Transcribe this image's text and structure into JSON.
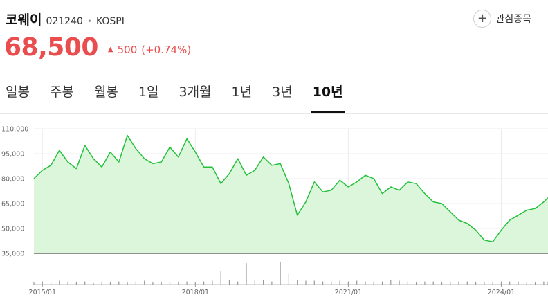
{
  "stock": {
    "name": "코웨이",
    "code": "021240",
    "separator": "•",
    "market": "KOSPI"
  },
  "watch": {
    "icon": "plus-icon",
    "icon_glyph": "+",
    "label": "관심종목"
  },
  "quote": {
    "price": "68,500",
    "change_arrow": "▲",
    "change": "500",
    "change_percent": "(+0.74%)"
  },
  "colors": {
    "up": "#e94d4d",
    "line": "#22c03a",
    "area": "#dcf6dc"
  },
  "tabs": [
    {
      "label": "일봉",
      "active": false
    },
    {
      "label": "주봉",
      "active": false
    },
    {
      "label": "월봉",
      "active": false
    },
    {
      "label": "1일",
      "active": false
    },
    {
      "label": "3개월",
      "active": false
    },
    {
      "label": "1년",
      "active": false
    },
    {
      "label": "3년",
      "active": false
    },
    {
      "label": "10년",
      "active": true
    }
  ],
  "chart_data": {
    "type": "area",
    "y_ticks": [
      "110,000",
      "95,000",
      "80,000",
      "65,000",
      "50,000",
      "35,000"
    ],
    "ylim": [
      35000,
      110000
    ],
    "x_ticks": [
      "2015/01",
      "2018/01",
      "2021/01",
      "2024/01"
    ],
    "xlim": [
      "2014/11",
      "2024/12"
    ],
    "grid": true,
    "series": [
      {
        "x": [
          "2014/11",
          "2015/01",
          "2015/03",
          "2015/05",
          "2015/07",
          "2015/09",
          "2015/11",
          "2016/01",
          "2016/03",
          "2016/05",
          "2016/07",
          "2016/09",
          "2016/11",
          "2017/01",
          "2017/03",
          "2017/05",
          "2017/07",
          "2017/09",
          "2017/11",
          "2018/01",
          "2018/03",
          "2018/05",
          "2018/07",
          "2018/09",
          "2018/11",
          "2019/01",
          "2019/03",
          "2019/05",
          "2019/07",
          "2019/09",
          "2019/11",
          "2020/01",
          "2020/03",
          "2020/05",
          "2020/07",
          "2020/09",
          "2020/11",
          "2021/01",
          "2021/03",
          "2021/05",
          "2021/07",
          "2021/09",
          "2021/11",
          "2022/01",
          "2022/03",
          "2022/05",
          "2022/07",
          "2022/09",
          "2022/11",
          "2023/01",
          "2023/03",
          "2023/05",
          "2023/07",
          "2023/09",
          "2023/11",
          "2024/01",
          "2024/03",
          "2024/05",
          "2024/07",
          "2024/09",
          "2024/11",
          "2024/12"
        ],
        "values": [
          80000,
          85000,
          88000,
          97000,
          90000,
          86000,
          100000,
          92000,
          87000,
          96000,
          90000,
          106000,
          98000,
          92000,
          89000,
          90000,
          99000,
          93000,
          104000,
          96000,
          87000,
          87000,
          77000,
          83000,
          92000,
          82000,
          85000,
          93000,
          88000,
          89000,
          77000,
          58000,
          66000,
          78000,
          72000,
          73000,
          79000,
          75000,
          78000,
          82000,
          80000,
          71000,
          75000,
          73000,
          78000,
          77000,
          71000,
          66000,
          65000,
          60000,
          55000,
          53000,
          49000,
          43000,
          42000,
          49000,
          55000,
          58000,
          61000,
          62000,
          66000,
          68500
        ]
      }
    ],
    "volume": [
      3,
      4,
      2,
      5,
      3,
      3,
      4,
      2,
      3,
      3,
      4,
      3,
      4,
      5,
      3,
      3,
      4,
      3,
      4,
      3,
      4,
      5,
      18,
      6,
      4,
      28,
      5,
      6,
      4,
      30,
      14,
      6,
      5,
      5,
      4,
      4,
      5,
      4,
      5,
      4,
      4,
      4,
      6,
      5,
      4,
      3,
      4,
      4,
      3,
      3,
      4,
      4,
      3,
      3,
      3,
      4,
      4,
      4,
      3,
      3,
      4,
      4
    ]
  }
}
